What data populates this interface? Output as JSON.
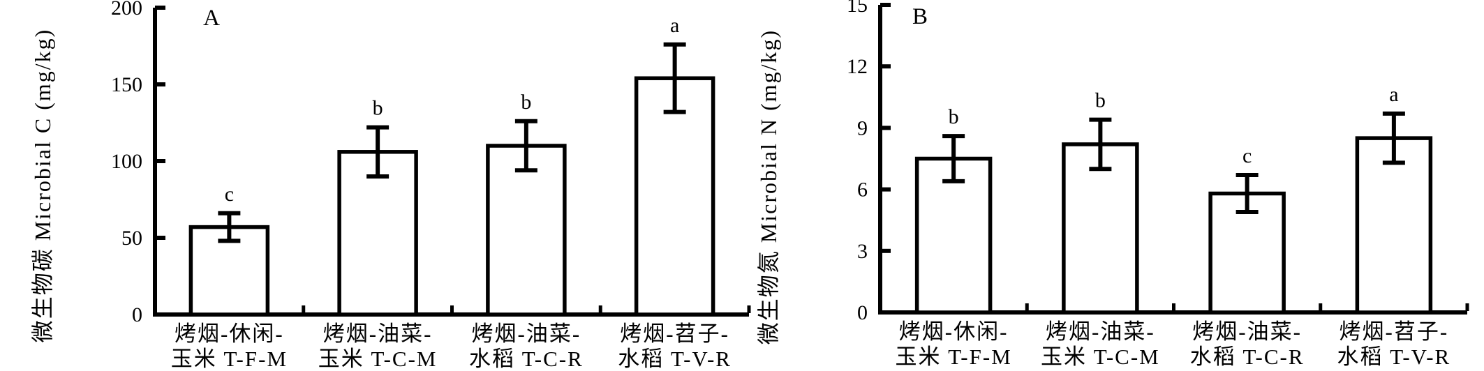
{
  "figure": {
    "background_color": "#ffffff",
    "ink_color": "#000000",
    "panel_labels": [
      "A",
      "B"
    ]
  },
  "chart_data": [
    {
      "type": "bar",
      "panel_label": "A",
      "ylabel": "微生物碳 Microbial C (mg/kg)",
      "xlabel": "",
      "ylim": [
        0,
        200
      ],
      "yticks": [
        0,
        50,
        100,
        150,
        200
      ],
      "categories": [
        [
          "烤烟-休闲-",
          "玉米 T-F-M"
        ],
        [
          "烤烟-油菜-",
          "玉米 T-C-M"
        ],
        [
          "烤烟-油菜-",
          "水稻 T-C-R"
        ],
        [
          "烤烟-苕子-",
          "水稻 T-V-R"
        ]
      ],
      "values": [
        57,
        106,
        110,
        154
      ],
      "errors": [
        9,
        16,
        16,
        22
      ],
      "sig_letters": [
        "c",
        "b",
        "b",
        "a"
      ],
      "bar_fill": "#ffffff",
      "bar_stroke": "#000000",
      "grid": false,
      "legend": "none"
    },
    {
      "type": "bar",
      "panel_label": "B",
      "ylabel": "微生物氮 Microbial N (mg/kg)",
      "xlabel": "",
      "ylim": [
        0,
        15
      ],
      "yticks": [
        0,
        3,
        6,
        9,
        12,
        15
      ],
      "categories": [
        [
          "烤烟-休闲-",
          "玉米 T-F-M"
        ],
        [
          "烤烟-油菜-",
          "玉米 T-C-M"
        ],
        [
          "烤烟-油菜-",
          "水稻 T-C-R"
        ],
        [
          "烤烟-苕子-",
          "水稻 T-V-R"
        ]
      ],
      "values": [
        7.5,
        8.2,
        5.8,
        8.5
      ],
      "errors": [
        1.1,
        1.2,
        0.9,
        1.2
      ],
      "sig_letters": [
        "b",
        "b",
        "c",
        "a"
      ],
      "bar_fill": "#ffffff",
      "bar_stroke": "#000000",
      "grid": false,
      "legend": "none"
    }
  ]
}
